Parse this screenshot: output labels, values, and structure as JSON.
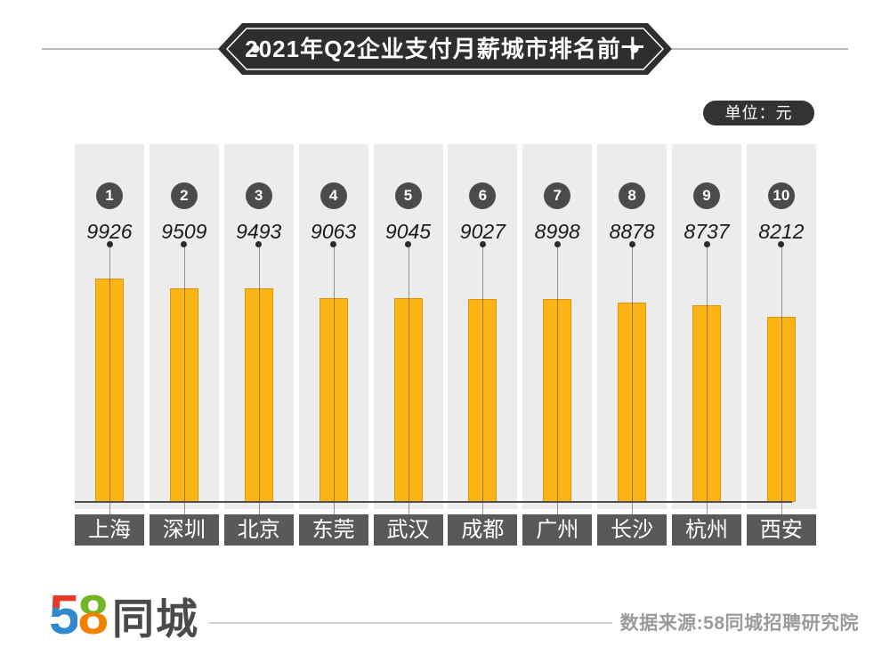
{
  "header": {
    "title": "2021年Q2企业支付月薪城市排名前十",
    "unit_label": "单位：元"
  },
  "chart_data": {
    "type": "bar",
    "title": "2021年Q2企业支付月薪城市排名前十",
    "unit": "元",
    "orientation": "vertical",
    "categories": [
      "上海",
      "深圳",
      "北京",
      "东莞",
      "武汉",
      "成都",
      "广州",
      "长沙",
      "杭州",
      "西安"
    ],
    "values": [
      9926,
      9509,
      9493,
      9063,
      9045,
      9027,
      8998,
      8878,
      8737,
      8212
    ],
    "ranks": [
      1,
      2,
      3,
      4,
      5,
      6,
      7,
      8,
      9,
      10
    ],
    "ylim": [
      0,
      9926
    ],
    "grid": false,
    "legend": "none",
    "bar_color": "#FDB515",
    "bar_border_color": "#DA940F",
    "value_label_style": "italic"
  },
  "footer": {
    "logo_number": "58",
    "logo_digit_5": "5",
    "logo_digit_8": "8",
    "logo_name": "同城",
    "source": "数据来源:58同城招聘研究院"
  }
}
